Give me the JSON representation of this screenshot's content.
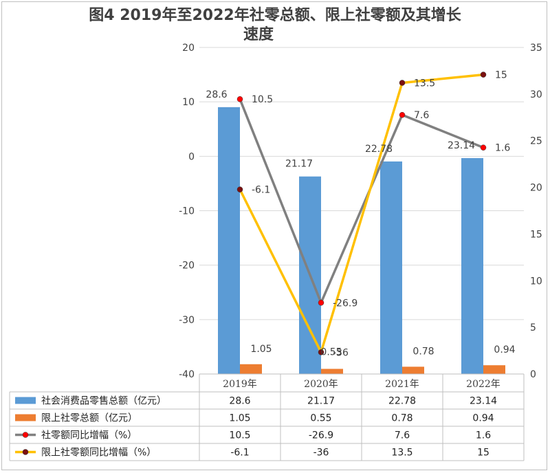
{
  "chart_data": {
    "type": "bar",
    "title_line1": "图4 2019年至2022年社零总额、限上社零额及其增长",
    "title_line2": "速度",
    "categories": [
      "2019年",
      "2020年",
      "2021年",
      "2022年"
    ],
    "y_left": {
      "ylim": [
        -40,
        20
      ],
      "ticks": [
        20,
        10,
        0,
        -10,
        -20,
        -30,
        -40
      ]
    },
    "y_right": {
      "ylim": [
        0,
        35
      ],
      "ticks": [
        35,
        30,
        25,
        20,
        15,
        10,
        5,
        0
      ]
    },
    "series": [
      {
        "name": "社会消费品零售总额（亿元）",
        "kind": "bar",
        "axis": "right",
        "color": "#5B9BD5",
        "values": [
          28.6,
          21.17,
          22.78,
          23.14
        ],
        "labels": [
          "28.6",
          "21.17",
          "22.78",
          "23.14"
        ]
      },
      {
        "name": "限上社零总额（亿元）",
        "kind": "bar",
        "axis": "right",
        "color": "#ED7D31",
        "values": [
          1.05,
          0.55,
          0.78,
          0.94
        ],
        "labels": [
          "1.05",
          "0.55",
          "0.78",
          "0.94"
        ]
      },
      {
        "name": "社零额同比增幅（%）",
        "kind": "line",
        "axis": "left",
        "color": "#808080",
        "marker": "#FF0000",
        "values": [
          10.5,
          -26.9,
          7.6,
          1.6
        ],
        "labels": [
          "10.5",
          "-26.9",
          "7.6",
          "1.6"
        ]
      },
      {
        "name": "限上社零额同比增幅（%）",
        "kind": "line",
        "axis": "left",
        "color": "#FFC000",
        "marker": "#7B1010",
        "values": [
          -6.1,
          -36,
          13.5,
          15
        ],
        "labels": [
          "-6.1",
          "-36",
          "13.5",
          "15"
        ]
      }
    ]
  }
}
